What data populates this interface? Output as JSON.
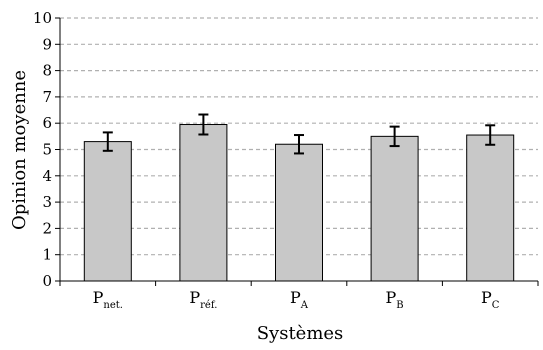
{
  "chart_data": {
    "type": "bar",
    "categories": [
      {
        "base": "P",
        "sub": "net."
      },
      {
        "base": "P",
        "sub": "réf."
      },
      {
        "base": "P",
        "sub": "A"
      },
      {
        "base": "P",
        "sub": "B"
      },
      {
        "base": "P",
        "sub": "C"
      }
    ],
    "values": [
      5.3,
      5.95,
      5.2,
      5.5,
      5.55
    ],
    "error": [
      0.35,
      0.38,
      0.35,
      0.37,
      0.37
    ],
    "xlabel": "Systèmes",
    "ylabel": "Opinion moyenne",
    "ylim": [
      0,
      10
    ],
    "yticks": [
      0,
      1,
      2,
      3,
      4,
      5,
      6,
      7,
      8,
      9,
      10
    ],
    "grid": "horizontal dashed",
    "bar_color": "#c8c8c8",
    "bar_edge_color": "#000000",
    "grid_color": "#b0b0b0",
    "error_color": "#000000"
  }
}
